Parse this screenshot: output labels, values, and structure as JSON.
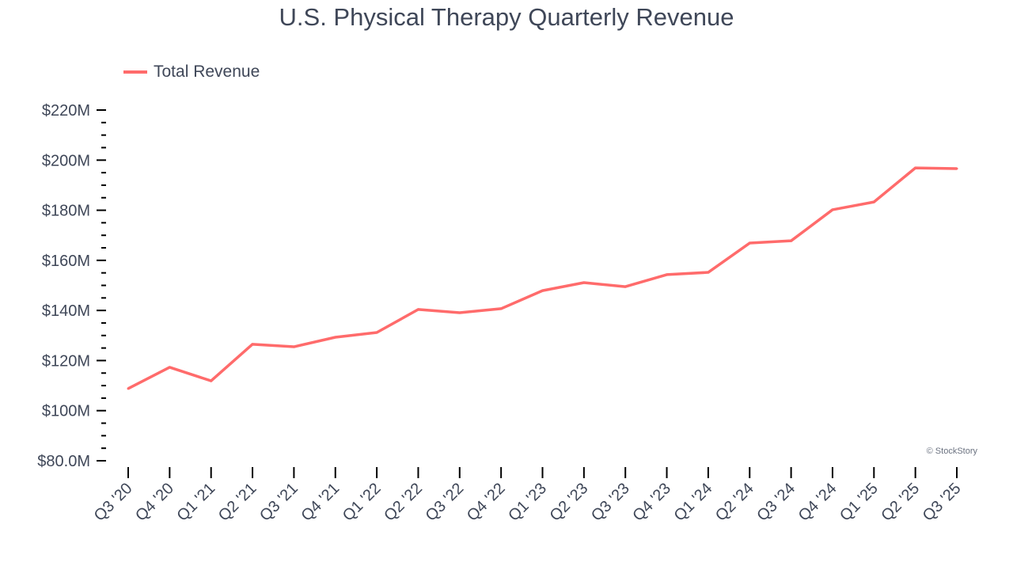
{
  "chart_data": {
    "type": "line",
    "title": "U.S. Physical Therapy Quarterly Revenue",
    "categories": [
      "Q3 '20",
      "Q4 '20",
      "Q1 '21",
      "Q2 '21",
      "Q3 '21",
      "Q4 '21",
      "Q1 '22",
      "Q2 '22",
      "Q3 '22",
      "Q4 '22",
      "Q1 '23",
      "Q2 '23",
      "Q3 '23",
      "Q4 '23",
      "Q1 '24",
      "Q2 '24",
      "Q3 '24",
      "Q4 '24",
      "Q1 '25",
      "Q2 '25",
      "Q3 '25"
    ],
    "series": [
      {
        "name": "Total Revenue",
        "color": "#ff6b6b",
        "values": [
          108.8,
          117.3,
          111.9,
          126.5,
          125.5,
          129.3,
          131.2,
          140.4,
          139.1,
          140.7,
          147.9,
          151.1,
          149.5,
          154.3,
          155.2,
          166.9,
          167.8,
          180.2,
          183.3,
          196.9,
          196.6
        ]
      }
    ],
    "y_ticks": [
      80,
      100,
      120,
      140,
      160,
      180,
      200,
      220
    ],
    "y_tick_labels": [
      "$80.0M",
      "$100M",
      "$120M",
      "$140M",
      "$160M",
      "$180M",
      "$200M",
      "$220M"
    ],
    "ylim": [
      80,
      220
    ],
    "y_unit": "$M",
    "grid": false,
    "legend_position": "top-left",
    "xlabel": "",
    "ylabel": ""
  },
  "credit": "© StockStory"
}
